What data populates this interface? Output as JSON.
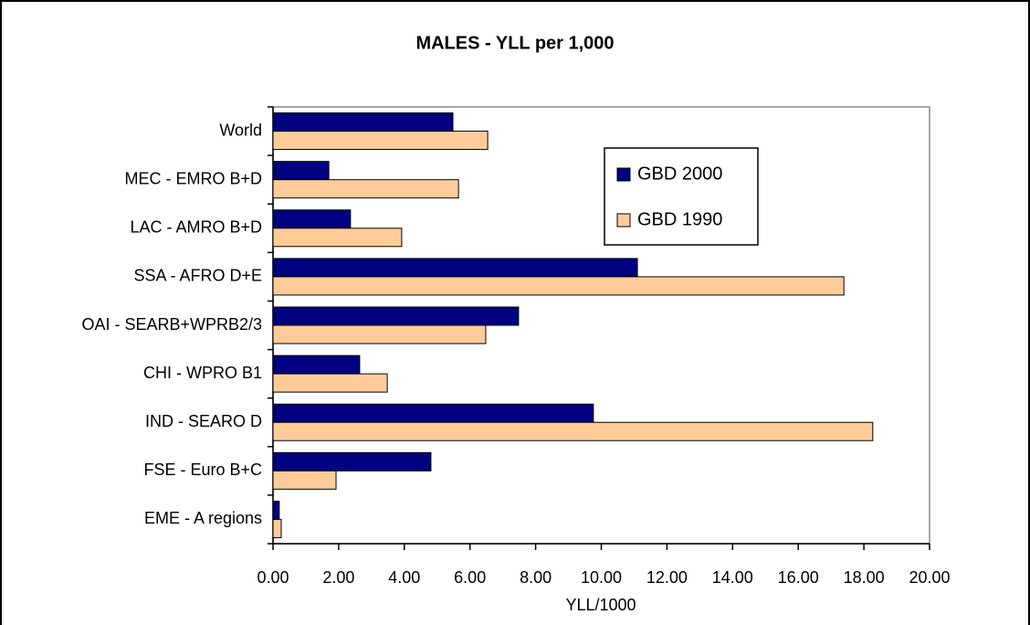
{
  "chart_data": {
    "type": "barh",
    "title": "MALES - YLL per 1,000",
    "xlabel": "YLL/1000",
    "categories": [
      "World",
      "MEC - EMRO B+D",
      "LAC - AMRO B+D",
      "SSA - AFRO D+E",
      "OAI - SEARB+WPRB2/3",
      "CHI - WPRO B1",
      "IND - SEARO D",
      "FSE - Euro B+C",
      "EME - A regions"
    ],
    "series": [
      {
        "name": "GBD 2000",
        "color": "#000080",
        "values": [
          5.48,
          1.7,
          2.36,
          11.1,
          7.48,
          2.64,
          9.76,
          4.81,
          0.19
        ]
      },
      {
        "name": "GBD 1990",
        "color": "#ffcc99",
        "values": [
          6.54,
          5.65,
          3.92,
          17.39,
          6.48,
          3.48,
          18.27,
          1.92,
          0.25
        ]
      }
    ],
    "xlim": [
      0,
      20
    ],
    "xticks": [
      {
        "value": 0,
        "label": "0.00"
      },
      {
        "value": 2,
        "label": "2.00"
      },
      {
        "value": 4,
        "label": "4.00"
      },
      {
        "value": 6,
        "label": "6.00"
      },
      {
        "value": 8,
        "label": "8.00"
      },
      {
        "value": 10,
        "label": "10.00"
      },
      {
        "value": 12,
        "label": "12.00"
      },
      {
        "value": 14,
        "label": "14.00"
      },
      {
        "value": 16,
        "label": "16.00"
      },
      {
        "value": 18,
        "label": "18.00"
      },
      {
        "value": 20,
        "label": "20.00"
      }
    ],
    "grid": false
  }
}
